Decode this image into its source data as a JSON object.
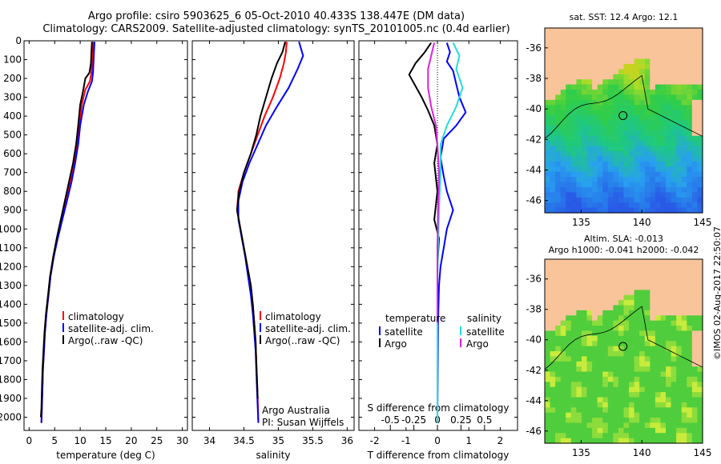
{
  "title": {
    "line1": "Argo profile: csiro 5903625_6 05-Oct-2010 40.433S 138.447E (DM data)",
    "line2": "Climatology: CARS2009. Satellite-adjusted climatology: synTS_20101005.nc (0.4d earlier)"
  },
  "colors": {
    "climatology": "#ff0000",
    "satellite": "#0000ff",
    "argo": "#000000",
    "argo_salinity_diff": "#dd22dd",
    "satellite_salinity_diff": "#22dddd",
    "land": "#f9c49a"
  },
  "stamp": "©IMOS 02-Aug-2017 22:50:07",
  "chart_data": [
    {
      "type": "line",
      "id": "temperature",
      "xlabel": "temperature (deg C)",
      "xlim": [
        -1,
        31
      ],
      "ylim": [
        2070,
        0
      ],
      "xticks": [
        0,
        5,
        10,
        15,
        20,
        25,
        30
      ],
      "yticks": [
        0,
        100,
        200,
        300,
        400,
        500,
        600,
        700,
        800,
        900,
        1000,
        1100,
        1200,
        1300,
        1400,
        1500,
        1600,
        1700,
        1800,
        1900,
        2000
      ],
      "legend": [
        "climatology",
        "satellite-adj. clim.",
        "Argo(..raw -QC)"
      ],
      "series": [
        {
          "name": "climatology",
          "color": "#ff0000",
          "points": [
            [
              12.5,
              5
            ],
            [
              12.4,
              60
            ],
            [
              12.3,
              120
            ],
            [
              12.2,
              170
            ],
            [
              11.9,
              215
            ],
            [
              11.0,
              260
            ],
            [
              10.3,
              340
            ],
            [
              9.8,
              450
            ],
            [
              9.4,
              550
            ],
            [
              8.8,
              650
            ],
            [
              8.0,
              750
            ],
            [
              7.1,
              850
            ],
            [
              6.3,
              950
            ],
            [
              5.5,
              1050
            ],
            [
              4.8,
              1150
            ],
            [
              4.2,
              1250
            ],
            [
              3.8,
              1350
            ],
            [
              3.4,
              1450
            ],
            [
              3.1,
              1550
            ],
            [
              2.9,
              1650
            ],
            [
              2.7,
              1750
            ],
            [
              2.6,
              1850
            ],
            [
              2.5,
              1950
            ],
            [
              2.4,
              2030
            ]
          ]
        },
        {
          "name": "satellite-adj. clim.",
          "color": "#0000ff",
          "points": [
            [
              12.8,
              5
            ],
            [
              12.7,
              60
            ],
            [
              12.6,
              120
            ],
            [
              12.5,
              170
            ],
            [
              12.3,
              215
            ],
            [
              11.5,
              270
            ],
            [
              10.7,
              340
            ],
            [
              10.0,
              450
            ],
            [
              9.6,
              550
            ],
            [
              9.0,
              650
            ],
            [
              8.3,
              750
            ],
            [
              7.4,
              850
            ],
            [
              6.5,
              950
            ],
            [
              5.6,
              1050
            ],
            [
              4.8,
              1150
            ],
            [
              4.2,
              1250
            ],
            [
              3.8,
              1350
            ],
            [
              3.4,
              1450
            ],
            [
              3.1,
              1550
            ],
            [
              2.9,
              1650
            ],
            [
              2.7,
              1750
            ],
            [
              2.6,
              1850
            ],
            [
              2.5,
              1950
            ],
            [
              2.4,
              2030
            ]
          ]
        },
        {
          "name": "Argo(..raw -QC)",
          "color": "#000000",
          "points": [
            [
              12.3,
              5
            ],
            [
              12.2,
              60
            ],
            [
              12.1,
              120
            ],
            [
              11.8,
              170
            ],
            [
              11.0,
              200
            ],
            [
              10.6,
              260
            ],
            [
              10.0,
              340
            ],
            [
              9.6,
              450
            ],
            [
              9.2,
              550
            ],
            [
              8.6,
              650
            ],
            [
              7.8,
              750
            ],
            [
              7.0,
              850
            ],
            [
              6.2,
              950
            ],
            [
              5.4,
              1050
            ],
            [
              4.7,
              1150
            ],
            [
              4.1,
              1250
            ],
            [
              3.7,
              1350
            ],
            [
              3.3,
              1450
            ],
            [
              3.0,
              1550
            ],
            [
              2.8,
              1650
            ],
            [
              2.6,
              1750
            ],
            [
              2.5,
              1850
            ],
            [
              2.4,
              1950
            ],
            [
              2.3,
              2000
            ]
          ]
        }
      ]
    },
    {
      "type": "line",
      "id": "salinity",
      "xlabel": "salinity",
      "xlim": [
        33.75,
        36.1
      ],
      "ylim": [
        2070,
        0
      ],
      "xticks": [
        34,
        34.5,
        35,
        35.5,
        36
      ],
      "xticklabels": [
        "34",
        "34.5",
        "35",
        "35.5",
        "36"
      ],
      "legend": [
        "climatology",
        "satellite-adj. clim.",
        "Argo(..raw -QC)"
      ],
      "annotations": [
        "Argo Australia",
        "PI: Susan Wijffels"
      ],
      "series": [
        {
          "name": "climatology",
          "color": "#ff0000",
          "points": [
            [
              35.12,
              5
            ],
            [
              35.11,
              60
            ],
            [
              35.08,
              120
            ],
            [
              35.02,
              200
            ],
            [
              34.92,
              300
            ],
            [
              34.8,
              400
            ],
            [
              34.7,
              500
            ],
            [
              34.6,
              600
            ],
            [
              34.5,
              700
            ],
            [
              34.42,
              800
            ],
            [
              34.4,
              900
            ],
            [
              34.45,
              1000
            ],
            [
              34.5,
              1100
            ],
            [
              34.55,
              1200
            ],
            [
              34.6,
              1300
            ],
            [
              34.63,
              1400
            ],
            [
              34.65,
              1500
            ],
            [
              34.67,
              1600
            ],
            [
              34.68,
              1700
            ],
            [
              34.69,
              1800
            ],
            [
              34.7,
              1900
            ],
            [
              34.71,
              2030
            ]
          ]
        },
        {
          "name": "satellite-adj. clim.",
          "color": "#0000ff",
          "points": [
            [
              35.3,
              5
            ],
            [
              35.36,
              80
            ],
            [
              35.28,
              150
            ],
            [
              35.15,
              250
            ],
            [
              34.98,
              350
            ],
            [
              34.82,
              450
            ],
            [
              34.7,
              550
            ],
            [
              34.58,
              650
            ],
            [
              34.48,
              750
            ],
            [
              34.42,
              850
            ],
            [
              34.42,
              950
            ],
            [
              34.47,
              1050
            ],
            [
              34.52,
              1150
            ],
            [
              34.56,
              1250
            ],
            [
              34.6,
              1350
            ],
            [
              34.63,
              1450
            ],
            [
              34.65,
              1550
            ],
            [
              34.67,
              1650
            ],
            [
              34.68,
              1750
            ],
            [
              34.69,
              1850
            ],
            [
              34.7,
              1950
            ],
            [
              34.71,
              2030
            ]
          ]
        },
        {
          "name": "Argo(..raw -QC)",
          "color": "#000000",
          "points": [
            [
              35.1,
              5
            ],
            [
              35.06,
              60
            ],
            [
              34.98,
              120
            ],
            [
              34.9,
              200
            ],
            [
              34.82,
              300
            ],
            [
              34.74,
              400
            ],
            [
              34.68,
              500
            ],
            [
              34.6,
              600
            ],
            [
              34.5,
              700
            ],
            [
              34.43,
              800
            ],
            [
              34.4,
              900
            ],
            [
              34.45,
              1000
            ],
            [
              34.5,
              1100
            ],
            [
              34.55,
              1200
            ],
            [
              34.6,
              1300
            ],
            [
              34.63,
              1400
            ],
            [
              34.65,
              1500
            ],
            [
              34.67,
              1600
            ],
            [
              34.68,
              1700
            ],
            [
              34.69,
              1800
            ],
            [
              34.7,
              1900
            ]
          ]
        }
      ]
    },
    {
      "type": "line",
      "id": "difference",
      "xlabel": "T difference from climatology",
      "xlabel_top": "S difference from climatology",
      "xlim": [
        -2.5,
        2.55
      ],
      "ylim": [
        2070,
        0
      ],
      "xticks": [
        -2,
        -1,
        0,
        1,
        2
      ],
      "top_ticks": [
        [
          -1.5,
          "-0.5"
        ],
        [
          -0.75,
          "-0.25"
        ],
        [
          0,
          "0"
        ],
        [
          0.75,
          "0.25"
        ],
        [
          1.5,
          "0.5"
        ]
      ],
      "legend": {
        "temperature_heading": "temperature",
        "salinity_heading": "salinity",
        "temperature_items": [
          "satellite",
          "Argo"
        ],
        "salinity_items": [
          "satellite",
          "Argo"
        ]
      },
      "series": [
        {
          "name": "temperature satellite",
          "color": "#0000ff",
          "points": [
            [
              0.3,
              10
            ],
            [
              0.4,
              60
            ],
            [
              0.3,
              110
            ],
            [
              0.5,
              160
            ],
            [
              0.6,
              230
            ],
            [
              0.7,
              300
            ],
            [
              0.9,
              380
            ],
            [
              0.6,
              450
            ],
            [
              0.2,
              520
            ],
            [
              0.1,
              620
            ],
            [
              0.2,
              720
            ],
            [
              0.3,
              800
            ],
            [
              0.5,
              900
            ],
            [
              0.3,
              1000
            ],
            [
              0.2,
              1100
            ],
            [
              0.1,
              1200
            ],
            [
              0.05,
              1300
            ],
            [
              0.02,
              1500
            ],
            [
              0,
              2030
            ]
          ]
        },
        {
          "name": "temperature Argo",
          "color": "#000000",
          "points": [
            [
              -0.2,
              10
            ],
            [
              -0.4,
              60
            ],
            [
              -0.7,
              120
            ],
            [
              -0.9,
              180
            ],
            [
              -0.7,
              240
            ],
            [
              -0.5,
              300
            ],
            [
              -0.3,
              370
            ],
            [
              -0.1,
              450
            ],
            [
              0,
              550
            ],
            [
              -0.1,
              650
            ],
            [
              0,
              800
            ],
            [
              -0.1,
              950
            ],
            [
              0.05,
              1050
            ],
            [
              0,
              1200
            ],
            [
              0,
              2000
            ]
          ]
        },
        {
          "name": "salinity satellite",
          "color": "#22dddd",
          "points": [
            [
              0.5,
              10
            ],
            [
              0.7,
              80
            ],
            [
              0.6,
              150
            ],
            [
              0.8,
              250
            ],
            [
              0.6,
              350
            ],
            [
              0.3,
              450
            ],
            [
              0.1,
              550
            ],
            [
              0.1,
              700
            ],
            [
              0.05,
              900
            ],
            [
              0.02,
              1100
            ],
            [
              0,
              1300
            ],
            [
              0,
              2030
            ]
          ]
        },
        {
          "name": "salinity Argo",
          "color": "#dd22dd",
          "points": [
            [
              -0.1,
              10
            ],
            [
              -0.2,
              80
            ],
            [
              -0.3,
              150
            ],
            [
              -0.3,
              250
            ],
            [
              -0.2,
              350
            ],
            [
              -0.05,
              450
            ],
            [
              0,
              550
            ],
            [
              0.05,
              700
            ],
            [
              0.02,
              900
            ],
            [
              0,
              1100
            ],
            [
              0,
              1400
            ],
            [
              0,
              1500
            ]
          ]
        }
      ]
    },
    {
      "type": "heatmap",
      "id": "sst_map",
      "title": "sat. SST: 12.4 Argo: 12.1",
      "xlim": [
        132,
        145
      ],
      "ylim": [
        -46.8,
        -34.7
      ],
      "xticks": [
        135,
        140,
        145
      ],
      "yticks": [
        -46,
        -44,
        -42,
        -40,
        -38,
        -36
      ],
      "marker": {
        "lon": 138.447,
        "lat": -40.433
      }
    },
    {
      "type": "heatmap",
      "id": "sla_map",
      "title": "Altim. SLA: -0.013",
      "subtitle": "Argo h1000: -0.041 h2000: -0.042",
      "xlim": [
        132,
        145
      ],
      "ylim": [
        -46.8,
        -34.7
      ],
      "xticks": [
        135,
        140,
        145
      ],
      "yticks": [
        -46,
        -44,
        -42,
        -40,
        -38,
        -36
      ],
      "marker": {
        "lon": 138.447,
        "lat": -40.433
      }
    }
  ]
}
